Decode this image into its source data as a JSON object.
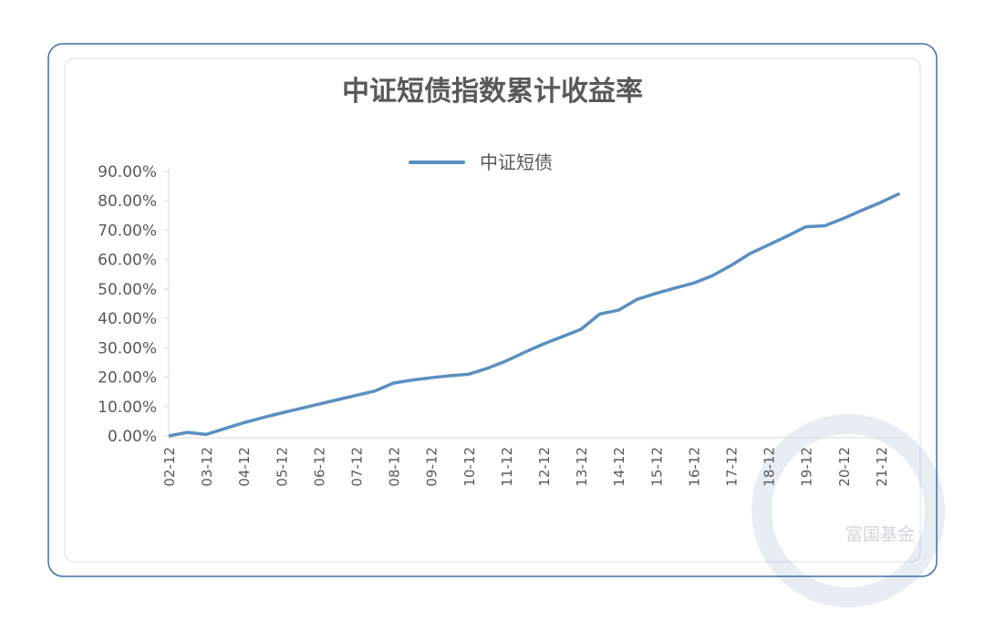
{
  "chart_data": {
    "type": "line",
    "title": "中证短债指数累计收益率",
    "watermark": "富国基金",
    "categories": [
      "02-12",
      null,
      "03-12",
      null,
      "04-12",
      null,
      "05-12",
      null,
      "06-12",
      null,
      "07-12",
      null,
      "08-12",
      null,
      "09-12",
      null,
      "10-12",
      null,
      "11-12",
      null,
      "12-12",
      null,
      "13-12",
      null,
      "14-12",
      null,
      "15-12",
      null,
      "16-12",
      null,
      "17-12",
      null,
      "18-12",
      null,
      "19-12",
      null,
      "20-12",
      null,
      "21-12",
      null
    ],
    "series": [
      {
        "name": "中证短债",
        "color": "#5b8fbf",
        "values": [
          0,
          1.2,
          0.5,
          2.5,
          4.5,
          6.2,
          7.8,
          9.3,
          10.8,
          12.3,
          13.8,
          15.3,
          18,
          19,
          19.8,
          20.5,
          21,
          23,
          25.5,
          28.5,
          31.3,
          33.8,
          36.3,
          41.5,
          42.8,
          46.5,
          48.5,
          50.3,
          52,
          54.5,
          58,
          62,
          65,
          68,
          71.2,
          71.5,
          74,
          76.8,
          79.5,
          82.5
        ]
      }
    ],
    "ylim": [
      0,
      90
    ],
    "yticks": [
      {
        "value": 0,
        "label": "0.00%"
      },
      {
        "value": 10,
        "label": "10.00%"
      },
      {
        "value": 20,
        "label": "20.00%"
      },
      {
        "value": 30,
        "label": "30.00%"
      },
      {
        "value": 40,
        "label": "40.00%"
      },
      {
        "value": 50,
        "label": "50.00%"
      },
      {
        "value": 60,
        "label": "60.00%"
      },
      {
        "value": 70,
        "label": "70.00%"
      },
      {
        "value": 80,
        "label": "80.00%"
      },
      {
        "value": 90,
        "label": "90.00%"
      }
    ],
    "legend": "top"
  }
}
